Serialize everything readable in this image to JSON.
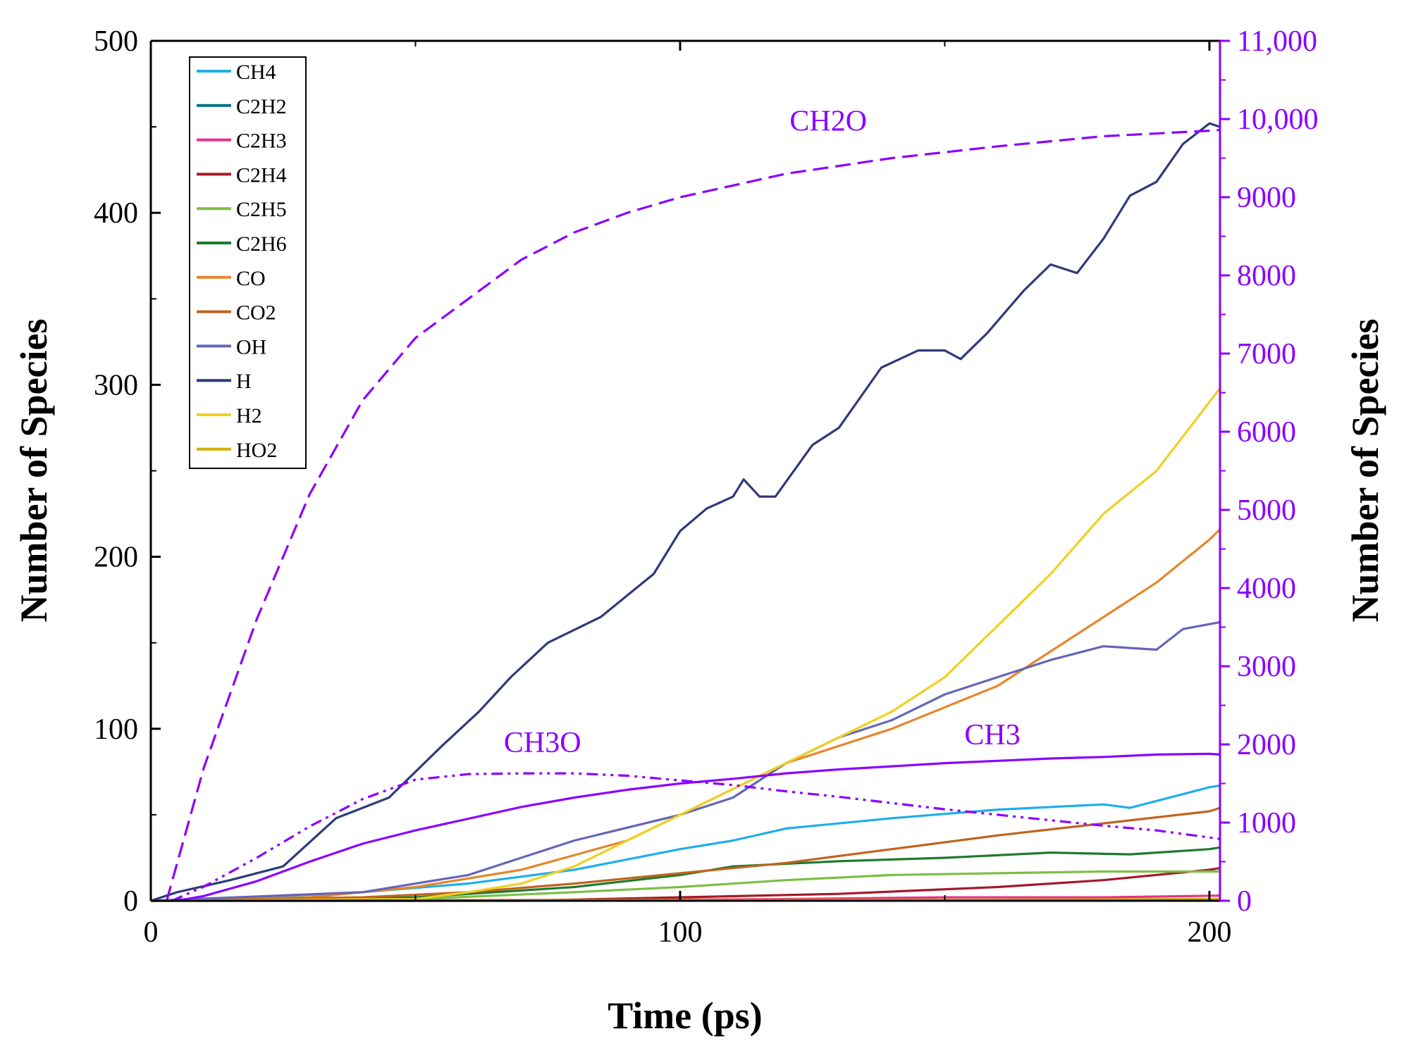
{
  "colors": {
    "right_axis": "#8B00FF",
    "left_axis": "#000000",
    "annotation": "#8B00FF"
  },
  "chart_data": {
    "type": "line",
    "title": "",
    "xlabel": "Time (ps)",
    "ylabel": "Number of Species",
    "y2label": "Number of Species",
    "xlim": [
      0,
      202
    ],
    "ylim": [
      0,
      500
    ],
    "y2lim": [
      0,
      11000
    ],
    "xticks": [
      0,
      100,
      200
    ],
    "yticks": [
      0,
      100,
      200,
      300,
      400,
      500
    ],
    "y2ticks": [
      0,
      1000,
      2000,
      3000,
      4000,
      5000,
      6000,
      7000,
      8000,
      9000,
      10000,
      11000
    ],
    "xtick_labels": [
      "0",
      "100",
      "200"
    ],
    "ytick_labels": [
      "0",
      "100",
      "200",
      "300",
      "400",
      "500"
    ],
    "y2tick_labels": [
      "0",
      "1000",
      "2000",
      "3000",
      "4000",
      "5000",
      "6000",
      "7000",
      "8000",
      "9000",
      "10,000",
      "11,000"
    ],
    "legend_position": "top-left",
    "grid": false,
    "series": [
      {
        "name": "CH4",
        "color": "#1EAEE8",
        "axis": "left",
        "style": "solid",
        "points": [
          [
            0,
            0
          ],
          [
            20,
            2
          ],
          [
            40,
            5
          ],
          [
            60,
            10
          ],
          [
            80,
            18
          ],
          [
            100,
            30
          ],
          [
            110,
            35
          ],
          [
            120,
            42
          ],
          [
            140,
            48
          ],
          [
            160,
            53
          ],
          [
            180,
            56
          ],
          [
            185,
            54
          ],
          [
            200,
            66
          ],
          [
            202,
            67
          ]
        ]
      },
      {
        "name": "C2H2",
        "color": "#00708A",
        "axis": "left",
        "style": "solid",
        "points": [
          [
            0,
            0
          ],
          [
            50,
            0
          ],
          [
            100,
            0.5
          ],
          [
            150,
            0.5
          ],
          [
            202,
            1
          ]
        ]
      },
      {
        "name": "C2H3",
        "color": "#E8308A",
        "axis": "left",
        "style": "solid",
        "points": [
          [
            0,
            0
          ],
          [
            80,
            0.5
          ],
          [
            120,
            1
          ],
          [
            150,
            2
          ],
          [
            180,
            2
          ],
          [
            202,
            3
          ]
        ]
      },
      {
        "name": "C2H4",
        "color": "#A31A2A",
        "axis": "left",
        "style": "solid",
        "points": [
          [
            0,
            0
          ],
          [
            70,
            0
          ],
          [
            100,
            2
          ],
          [
            130,
            4
          ],
          [
            160,
            8
          ],
          [
            180,
            12
          ],
          [
            200,
            18
          ],
          [
            202,
            19
          ]
        ]
      },
      {
        "name": "C2H5",
        "color": "#7DBE46",
        "axis": "left",
        "style": "solid",
        "points": [
          [
            0,
            0
          ],
          [
            50,
            1
          ],
          [
            80,
            5
          ],
          [
            100,
            8
          ],
          [
            120,
            12
          ],
          [
            140,
            15
          ],
          [
            160,
            16
          ],
          [
            180,
            17
          ],
          [
            200,
            17
          ],
          [
            202,
            17
          ]
        ]
      },
      {
        "name": "C2H6",
        "color": "#1E7A2E",
        "axis": "left",
        "style": "solid",
        "points": [
          [
            0,
            0
          ],
          [
            50,
            2
          ],
          [
            80,
            8
          ],
          [
            100,
            15
          ],
          [
            110,
            20
          ],
          [
            130,
            23
          ],
          [
            150,
            25
          ],
          [
            170,
            28
          ],
          [
            185,
            27
          ],
          [
            200,
            30
          ],
          [
            202,
            31
          ]
        ]
      },
      {
        "name": "CO",
        "color": "#E8852A",
        "axis": "left",
        "style": "solid",
        "points": [
          [
            0,
            0
          ],
          [
            30,
            2
          ],
          [
            50,
            8
          ],
          [
            70,
            18
          ],
          [
            90,
            35
          ],
          [
            100,
            50
          ],
          [
            120,
            80
          ],
          [
            140,
            100
          ],
          [
            160,
            125
          ],
          [
            170,
            145
          ],
          [
            180,
            165
          ],
          [
            190,
            185
          ],
          [
            200,
            210
          ],
          [
            202,
            216
          ]
        ]
      },
      {
        "name": "CO2",
        "color": "#C0641E",
        "axis": "left",
        "style": "solid",
        "points": [
          [
            0,
            0
          ],
          [
            40,
            2
          ],
          [
            60,
            5
          ],
          [
            80,
            10
          ],
          [
            100,
            16
          ],
          [
            120,
            22
          ],
          [
            140,
            30
          ],
          [
            160,
            38
          ],
          [
            180,
            45
          ],
          [
            200,
            52
          ],
          [
            202,
            54
          ]
        ]
      },
      {
        "name": "OH",
        "color": "#6466B8",
        "axis": "left",
        "style": "solid",
        "points": [
          [
            0,
            0
          ],
          [
            40,
            5
          ],
          [
            60,
            15
          ],
          [
            80,
            35
          ],
          [
            100,
            50
          ],
          [
            110,
            60
          ],
          [
            120,
            80
          ],
          [
            130,
            95
          ],
          [
            140,
            105
          ],
          [
            150,
            120
          ],
          [
            160,
            130
          ],
          [
            170,
            140
          ],
          [
            180,
            148
          ],
          [
            190,
            146
          ],
          [
            195,
            158
          ],
          [
            202,
            162
          ]
        ]
      },
      {
        "name": "H",
        "color": "#2E3A7A",
        "axis": "left",
        "style": "solid",
        "points": [
          [
            0,
            0
          ],
          [
            5,
            5
          ],
          [
            15,
            12
          ],
          [
            25,
            20
          ],
          [
            35,
            48
          ],
          [
            45,
            60
          ],
          [
            55,
            90
          ],
          [
            62,
            110
          ],
          [
            68,
            130
          ],
          [
            75,
            150
          ],
          [
            85,
            165
          ],
          [
            95,
            190
          ],
          [
            100,
            215
          ],
          [
            105,
            228
          ],
          [
            110,
            235
          ],
          [
            112,
            245
          ],
          [
            115,
            235
          ],
          [
            118,
            235
          ],
          [
            125,
            265
          ],
          [
            130,
            275
          ],
          [
            138,
            310
          ],
          [
            145,
            320
          ],
          [
            150,
            320
          ],
          [
            153,
            315
          ],
          [
            158,
            330
          ],
          [
            165,
            355
          ],
          [
            170,
            370
          ],
          [
            175,
            365
          ],
          [
            180,
            385
          ],
          [
            185,
            410
          ],
          [
            190,
            418
          ],
          [
            195,
            440
          ],
          [
            200,
            452
          ],
          [
            202,
            450
          ]
        ]
      },
      {
        "name": "H2",
        "color": "#F0D020",
        "axis": "left",
        "style": "solid",
        "points": [
          [
            0,
            0
          ],
          [
            50,
            1
          ],
          [
            60,
            5
          ],
          [
            70,
            10
          ],
          [
            80,
            20
          ],
          [
            90,
            35
          ],
          [
            100,
            50
          ],
          [
            110,
            65
          ],
          [
            120,
            80
          ],
          [
            130,
            95
          ],
          [
            140,
            110
          ],
          [
            150,
            130
          ],
          [
            160,
            160
          ],
          [
            170,
            190
          ],
          [
            180,
            225
          ],
          [
            190,
            250
          ],
          [
            200,
            290
          ],
          [
            202,
            298
          ]
        ]
      },
      {
        "name": "HO2",
        "color": "#D4B000",
        "axis": "left",
        "style": "solid",
        "points": [
          [
            0,
            0
          ],
          [
            100,
            0.5
          ],
          [
            150,
            0.5
          ],
          [
            202,
            1
          ]
        ]
      },
      {
        "name": "",
        "label": "CH2O",
        "color": "#8B00FF",
        "axis": "right",
        "style": "dash",
        "points": [
          [
            3,
            0
          ],
          [
            10,
            1700
          ],
          [
            20,
            3600
          ],
          [
            30,
            5200
          ],
          [
            40,
            6400
          ],
          [
            50,
            7200
          ],
          [
            60,
            7700
          ],
          [
            70,
            8200
          ],
          [
            80,
            8550
          ],
          [
            90,
            8800
          ],
          [
            100,
            9000
          ],
          [
            120,
            9300
          ],
          [
            140,
            9500
          ],
          [
            160,
            9650
          ],
          [
            180,
            9780
          ],
          [
            200,
            9850
          ],
          [
            202,
            9860
          ]
        ]
      },
      {
        "name": "",
        "label": "CH3O",
        "color": "#8B00FF",
        "axis": "right",
        "style": "dashdot",
        "points": [
          [
            4,
            0
          ],
          [
            10,
            180
          ],
          [
            20,
            550
          ],
          [
            30,
            950
          ],
          [
            40,
            1300
          ],
          [
            50,
            1550
          ],
          [
            60,
            1620
          ],
          [
            70,
            1630
          ],
          [
            80,
            1630
          ],
          [
            90,
            1600
          ],
          [
            100,
            1540
          ],
          [
            110,
            1480
          ],
          [
            120,
            1400
          ],
          [
            130,
            1330
          ],
          [
            140,
            1250
          ],
          [
            150,
            1170
          ],
          [
            160,
            1100
          ],
          [
            170,
            1030
          ],
          [
            180,
            960
          ],
          [
            190,
            900
          ],
          [
            200,
            810
          ],
          [
            202,
            790
          ]
        ]
      },
      {
        "name": "",
        "label": "CH3",
        "color": "#8B00FF",
        "axis": "right",
        "style": "solid",
        "points": [
          [
            5,
            0
          ],
          [
            10,
            60
          ],
          [
            20,
            250
          ],
          [
            30,
            500
          ],
          [
            40,
            730
          ],
          [
            50,
            900
          ],
          [
            60,
            1050
          ],
          [
            70,
            1200
          ],
          [
            80,
            1320
          ],
          [
            90,
            1420
          ],
          [
            100,
            1500
          ],
          [
            110,
            1560
          ],
          [
            120,
            1630
          ],
          [
            130,
            1680
          ],
          [
            140,
            1720
          ],
          [
            150,
            1760
          ],
          [
            160,
            1790
          ],
          [
            170,
            1820
          ],
          [
            180,
            1840
          ],
          [
            190,
            1870
          ],
          [
            200,
            1880
          ],
          [
            202,
            1870
          ]
        ]
      }
    ],
    "annotations": [
      {
        "text": "CH2O",
        "x": 128,
        "y": 9850,
        "axis": "right"
      },
      {
        "text": "CH3O",
        "x": 74,
        "y": 1900,
        "axis": "right"
      },
      {
        "text": "CH3",
        "x": 159,
        "y": 2000,
        "axis": "right"
      }
    ]
  }
}
